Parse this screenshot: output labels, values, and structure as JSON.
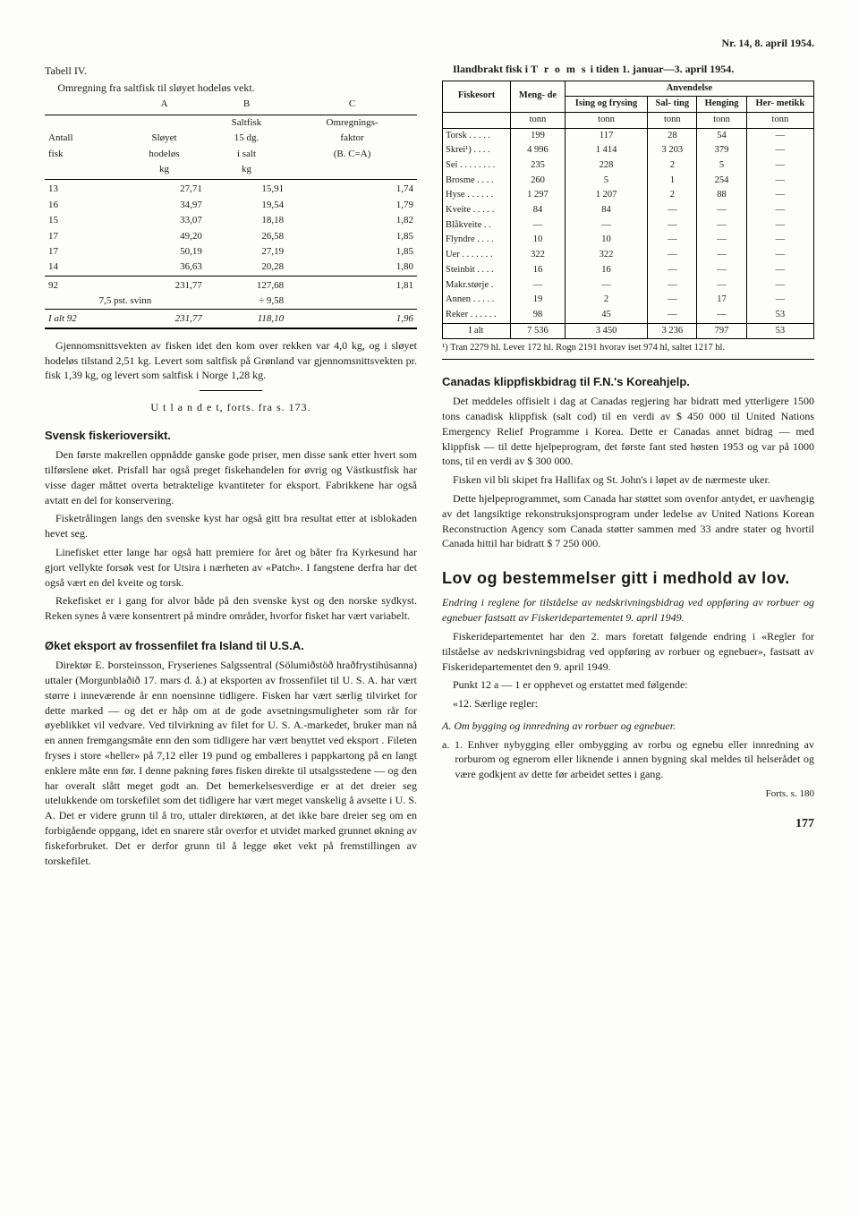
{
  "header": "Nr. 14, 8. april 1954.",
  "left": {
    "t4_title": "Tabell IV.",
    "t4_sub": "Omregning fra saltfisk til sløyet hodeløs vekt.",
    "t4_cols": {
      "c1a": "Antall",
      "c1b": "fisk",
      "c2a": "A",
      "c2b": "Sløyet",
      "c2c": "hodeløs",
      "c2d": "kg",
      "c3a": "B",
      "c3b": "Saltfisk",
      "c3c": "15 dg.",
      "c3d": "i salt",
      "c3e": "kg",
      "c4a": "C",
      "c4b": "Omregnings-",
      "c4c": "faktor",
      "c4d": "(B. C=A)"
    },
    "t4_rows": [
      [
        "13",
        "27,71",
        "15,91",
        "1,74"
      ],
      [
        "16",
        "34,97",
        "19,54",
        "1,79"
      ],
      [
        "15",
        "33,07",
        "18,18",
        "1,82"
      ],
      [
        "17",
        "49,20",
        "26,58",
        "1,85"
      ],
      [
        "17",
        "50,19",
        "27,19",
        "1,85"
      ],
      [
        "14",
        "36,63",
        "20,28",
        "1,80"
      ]
    ],
    "t4_sub1": [
      "92",
      "231,77",
      "127,68",
      "1,81"
    ],
    "t4_svinn_l": "7,5 pst. svinn",
    "t4_svinn_r": "÷   9,58",
    "t4_total": [
      "I alt 92",
      "231,77",
      "118,10",
      "1,96"
    ],
    "note1": "Gjennomsnittsvekten av fisken idet den kom over rekken var 4,0 kg, og i sløyet hodeløs tilstand 2,51 kg. Levert som saltfisk på Grønland var gjennomsnittsvekten pr. fisk 1,39 kg, og levert som saltfisk i Norge 1,28 kg.",
    "utl": "U t l a n d e t,  forts. fra s. 173.",
    "sv_title": "Svensk fiskerioversikt.",
    "sv_p1": "Den første makrellen oppnådde ganske gode priser, men disse sank etter hvert som tilførslene øket. Prisfall har også preget fiskehandelen for øvrig og Västkustfisk har visse dager måttet overta betraktelige kvantiteter for eksport. Fabrikkene har også avtatt en del for konservering.",
    "sv_p2": "Fisketrålingen langs den svenske kyst har også gitt bra resultat etter at isblokaden hevet seg.",
    "sv_p3": "Linefisket etter lange har også hatt premiere for året og båter fra Kyrkesund har gjort vellykte forsøk vest for Utsira i nærheten av «Patch». I fangstene derfra har det også vært en del kveite og torsk.",
    "sv_p4": "Rekefisket er i gang for alvor både på den svenske kyst og den norske sydkyst. Reken synes å være konsentrert på mindre områder, hvorfor fisket har vært variabelt.",
    "is_title": "Øket eksport av frossenfilet fra Island til U.S.A.",
    "is_p": "Direktør E. Þorsteinsson, Fryserienes Salgssentral (Sölumiðstöð hraðfrystihúsanna) uttaler (Morgunblaðið 17. mars d. å.) at eksporten av frossenfilet til U. S. A. har vært større i inneværende år enn noensinne tidligere. Fisken har vært særlig tilvirket for dette marked — og det er håp om at de gode avsetningsmuligheter som rår for øyeblikket vil vedvare. Ved tilvirkning av filet for U. S. A.-markedet, bruker man nå en annen fremgangsmåte enn den som tidligere har vært benyttet ved eksport . Fileten fryses i store «heller» på 7,12 eller 19 pund og emballeres i pappkartong på en langt enklere måte enn før. I denne pakning føres fisken direkte til utsalgsstedene — og den har overalt slått meget godt an. Det bemerkelsesverdige er at det dreier seg utelukkende om torskefilet som det tidligere har vært meget vanskelig å avsette i U. S. A. Det er videre grunn til å tro, uttaler direktøren, at det ikke bare dreier seg om en forbigående oppgang, idet en snarere står overfor et utvidet marked grunnet økning av fiskeforbruket. Det er derfor grunn til å legge øket vekt på fremstillingen av torskefilet."
  },
  "right": {
    "troms_title_a": "Ilandbrakt  fisk  i ",
    "troms_title_b": "T r o m s",
    "troms_title_c": "  i  tiden  1.  januar—3. april 1954.",
    "th": {
      "fiskesort": "Fiskesort",
      "mengde": "Meng-\nde",
      "anv": "Anvendelse",
      "ising": "Ising og\nfrysing",
      "salting": "Sal-\nting",
      "henging": "Henging",
      "herm": "Her-\nmetikk",
      "tonn": "tonn"
    },
    "rows": [
      [
        "Torsk . . . . .",
        "199",
        "117",
        "28",
        "54",
        "—"
      ],
      [
        "Skrei¹) . . . .",
        "4 996",
        "1 414",
        "3 203",
        "379",
        "—"
      ],
      [
        "Sei . . . . . . . .",
        "235",
        "228",
        "2",
        "5",
        "—"
      ],
      [
        "Brosme . . . .",
        "260",
        "5",
        "1",
        "254",
        "—"
      ],
      [
        "Hyse . . . . . .",
        "1 297",
        "1 207",
        "2",
        "88",
        "—"
      ],
      [
        "Kveite . . . . .",
        "84",
        "84",
        "—",
        "—",
        "—"
      ],
      [
        "Blåkveite . .",
        "—",
        "—",
        "—",
        "—",
        "—"
      ],
      [
        "Flyndre . . . .",
        "10",
        "10",
        "—",
        "—",
        "—"
      ],
      [
        "Uer . . . . . . .",
        "322",
        "322",
        "—",
        "—",
        "—"
      ],
      [
        "Steinbit . . . .",
        "16",
        "16",
        "—",
        "—",
        "—"
      ],
      [
        "Makr.størje .",
        "—",
        "—",
        "—",
        "—",
        "—"
      ],
      [
        "Annen . . . . .",
        "19",
        "2",
        "—",
        "17",
        "—"
      ],
      [
        "Reker . . . . . .",
        "98",
        "45",
        "—",
        "—",
        "53"
      ]
    ],
    "sum": [
      "I alt",
      "7 536",
      "3 450",
      "3 236",
      "797",
      "53"
    ],
    "fn": "¹) Tran 2279 hl. Lever 172 hl. Rogn 2191 hvorav iset 974 hl, saltet 1217 hl.",
    "can_title": "Canadas klippfiskbidrag til F.N.'s Koreahjelp.",
    "can_p1": "Det meddeles offisielt i dag at Canadas regjering har bidratt med ytterligere 1500 tons canadisk klippfisk (salt cod) til en verdi av $ 450 000 til United Nations Emergency Relief Programme i Korea. Dette er Canadas annet bidrag — med klippfisk — til dette hjelpeprogram, det første fant sted høsten 1953 og var på 1000 tons, til en verdi av $ 300 000.",
    "can_p2": "Fisken vil bli skipet fra Hallifax og St. John's i løpet av de nærmeste uker.",
    "can_p3": "Dette hjelpeprogrammet, som Canada har støttet som ovenfor antydet, er uavhengig av det langsiktige rekonstruksjonsprogram under ledelse av United Nations Korean Reconstruction Agency som Canada støtter sammen med 33 andre stater og hvortil Canada hittil har bidratt $ 7 250 000.",
    "lov_title": "Lov og bestemmelser gitt i medhold av lov.",
    "lov_sub": "Endring i reglene for tilståelse av nedskrivningsbidrag ved oppføring av rorbuer og egnebuer fastsatt av Fiskeridepartementet 9. april 1949.",
    "lov_p1": "Fiskeridepartementet har den 2. mars foretatt følgende endring i «Regler for tilståelse av nedskrivningsbidrag ved oppføring av rorbuer og egnebuer», fastsatt av Fiskeridepartementet den 9. april 1949.",
    "lov_p2": "Punkt 12 a — 1 er opphevet og erstattet med følgende:",
    "lov_p2b": "«12. Særlige regler:",
    "lov_A": "A. Om bygging og innredning av rorbuer og egnebuer.",
    "lov_a1": "a. 1. Enhver nybygging eller ombygging av rorbu og egnebu eller innredning av rorburom og egnerom eller liknende i annen bygning skal meldes til helserådet og være godkjent av dette før arbeidet settes i gang.",
    "forts": "Forts. s. 180",
    "pagenum": "177"
  }
}
